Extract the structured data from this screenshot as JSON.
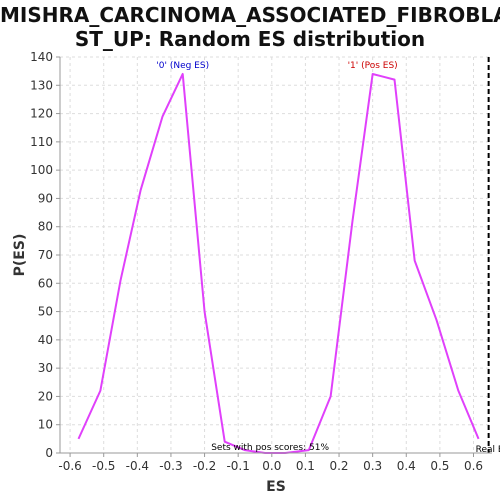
{
  "chart_data": {
    "type": "line",
    "title_lines": [
      "MISHRA_CARCINOMA_ASSOCIATED_FIBROBLA",
      "ST_UP: Random ES distribution"
    ],
    "xlabel": "ES",
    "ylabel": "P(ES)",
    "xlim": [
      -0.63,
      0.655
    ],
    "ylim": [
      0,
      140
    ],
    "xticks": [
      -0.6,
      -0.5,
      -0.4,
      -0.3,
      -0.2,
      -0.1,
      0.0,
      0.1,
      0.2,
      0.3,
      0.4,
      0.5,
      0.6
    ],
    "xtick_labels": [
      "-0.6",
      "-0.5",
      "-0.4",
      "-0.3",
      "-0.2",
      "-0.1",
      "0.0",
      "0.1",
      "0.2",
      "0.3",
      "0.4",
      "0.5",
      "0.6"
    ],
    "yticks": [
      0,
      10,
      20,
      30,
      40,
      50,
      60,
      70,
      80,
      90,
      100,
      110,
      120,
      130,
      140
    ],
    "ytick_labels": [
      "0",
      "10",
      "20",
      "30",
      "40",
      "50",
      "60",
      "70",
      "80",
      "90",
      "100",
      "110",
      "120",
      "130",
      "140"
    ],
    "grid": true,
    "series_color": "#e040fb",
    "series": [
      {
        "x": [
          -0.575,
          -0.51,
          -0.45,
          -0.39,
          -0.325,
          -0.265,
          -0.2,
          -0.14,
          -0.08,
          -0.02,
          0.04,
          0.11,
          0.175,
          0.24,
          0.3,
          0.365,
          0.425,
          0.49,
          0.555,
          0.615
        ],
        "values": [
          5,
          22,
          61,
          93,
          119,
          134,
          50,
          4,
          1,
          0,
          0,
          1,
          20,
          82,
          134,
          132,
          68,
          47,
          22,
          5
        ]
      }
    ],
    "real_es": 0.645,
    "real_es_color": "#000000",
    "annotations": {
      "neg_label": {
        "text": "'0' (Neg ES)",
        "x": -0.265,
        "y": 134,
        "color": "#0000cc"
      },
      "pos_label": {
        "text": "'1' (Pos ES)",
        "x": 0.3,
        "y": 134,
        "color": "#cc0000"
      },
      "pos_scores": {
        "text": "Sets with pos scores: 51%",
        "x": -0.005,
        "y": 0,
        "color": "#000000"
      },
      "real_es_label": {
        "text": "Real ES f",
        "x": 0.645,
        "y": 0,
        "color": "#000000"
      }
    }
  }
}
